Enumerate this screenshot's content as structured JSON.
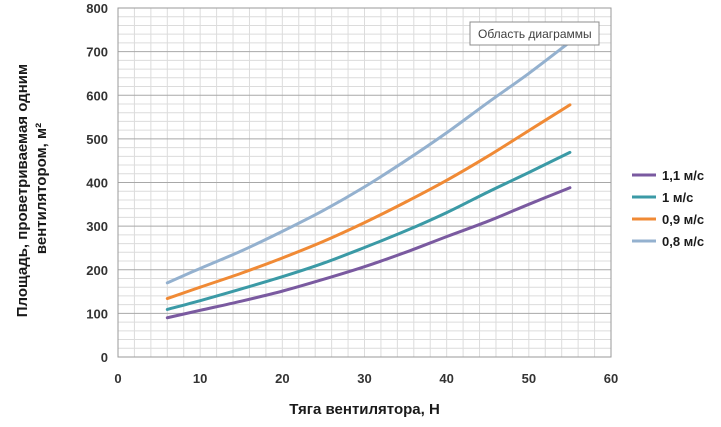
{
  "tooltip": "Область диаграммы",
  "chart_data": {
    "type": "line",
    "title": "",
    "xlabel": "Тяга вентилятора, Н",
    "ylabel": [
      "Площадь, проветриваемая одним",
      "вентилятором, м²"
    ],
    "xlim": [
      0,
      60
    ],
    "ylim": [
      0,
      800
    ],
    "xticks": [
      0,
      10,
      20,
      30,
      40,
      50,
      60
    ],
    "yticks": [
      0,
      100,
      200,
      300,
      400,
      500,
      600,
      700,
      800
    ],
    "grid": true,
    "legend_position": "right",
    "x": [
      6,
      10,
      15,
      20,
      25,
      30,
      35,
      40,
      45,
      50,
      55
    ],
    "series": [
      {
        "name": "1,1 м/с",
        "color": "#7a5aa0",
        "values": [
          90,
          107,
          128,
          151,
          178,
          207,
          240,
          276,
          311,
          350,
          388
        ]
      },
      {
        "name": "1 м/с",
        "color": "#3b9aa6",
        "values": [
          109,
          129,
          156,
          184,
          215,
          251,
          289,
          331,
          378,
          423,
          469
        ]
      },
      {
        "name": "0,9 м/с",
        "color": "#f08a35",
        "values": [
          134,
          160,
          192,
          227,
          265,
          308,
          355,
          405,
          460,
          519,
          578
        ]
      },
      {
        "name": "0,8 м/с",
        "color": "#94b1cf",
        "values": [
          170,
          203,
          243,
          288,
          336,
          390,
          450,
          514,
          583,
          650,
          722
        ]
      }
    ]
  }
}
